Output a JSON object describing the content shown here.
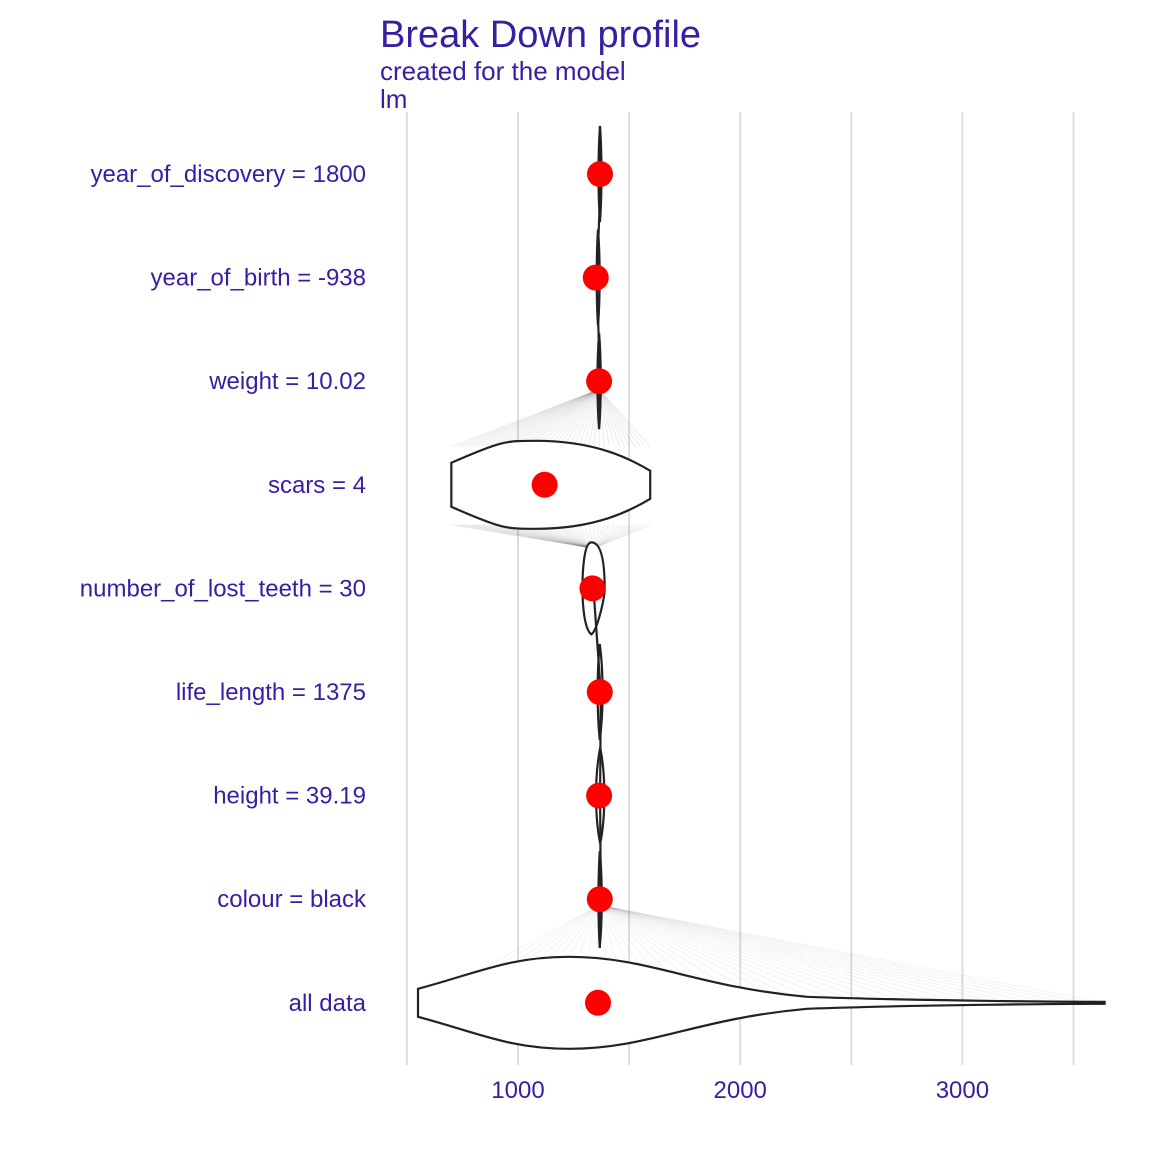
{
  "chart_data": {
    "type": "violin",
    "title": "Break Down profile",
    "subtitle_lines": [
      "created for the  model",
      "lm"
    ],
    "xlabel": "",
    "ylabel": "",
    "xlim": [
      510,
      3640
    ],
    "x_ticks": [
      1000,
      2000,
      3000
    ],
    "grid": true,
    "colors": {
      "text": "#371ea3",
      "point": "#ff0000",
      "outline": "#222222",
      "grid": "#dddddd"
    },
    "categories": [
      "year_of_discovery = 1800",
      "year_of_birth = -938",
      "weight = 10.02",
      "scars = 4",
      "number_of_lost_teeth = 30",
      "life_length = 1375",
      "height = 39.19",
      "colour = black",
      "all data"
    ],
    "points": [
      1369,
      1350,
      1365,
      1120,
      1335,
      1368,
      1365,
      1368,
      1360
    ],
    "violins": [
      {
        "category": "year_of_discovery = 1800",
        "min": 1360,
        "max": 1378,
        "mode": 1369
      },
      {
        "category": "year_of_birth = -938",
        "min": 1352,
        "max": 1370,
        "mode": 1360
      },
      {
        "category": "weight = 10.02",
        "min": 1355,
        "max": 1375,
        "mode": 1365
      },
      {
        "category": "scars = 4",
        "min": 700,
        "max": 1595,
        "mode": 1080
      },
      {
        "category": "number_of_lost_teeth = 30",
        "min": 1290,
        "max": 1390,
        "mode": 1330
      },
      {
        "category": "life_length = 1375",
        "min": 1355,
        "max": 1385,
        "mode": 1368
      },
      {
        "category": "height = 39.19",
        "min": 1345,
        "max": 1395,
        "mode": 1370
      },
      {
        "category": "colour = black",
        "min": 1360,
        "max": 1380,
        "mode": 1368
      },
      {
        "category": "all data",
        "min": 550,
        "max": 3640,
        "mode": 1230
      }
    ]
  }
}
